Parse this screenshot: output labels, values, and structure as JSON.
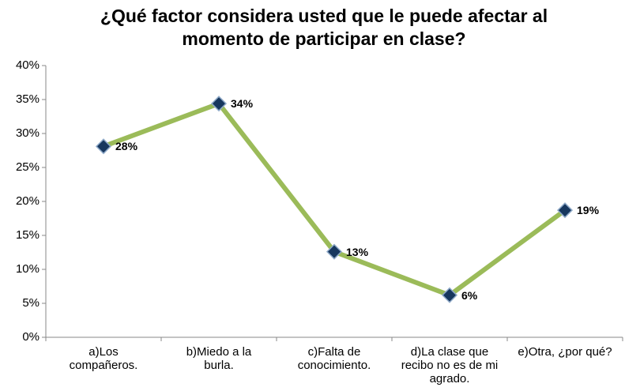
{
  "chart_data": {
    "type": "line",
    "title": "¿Qué factor considera usted que le puede afectar al momento de participar en clase?",
    "categories": [
      "a)Los compañeros.",
      "b)Miedo a la burla.",
      "c)Falta de conocimiento.",
      "d)La clase que recibo no es de mi agrado.",
      "e)Otra, ¿por qué?"
    ],
    "series": [
      {
        "name": null,
        "color": "#9bbb59",
        "marker_color": "#17375e",
        "values": [
          28.1,
          34.4,
          12.6,
          6.2,
          18.7
        ],
        "value_labels": [
          "28%",
          "34%",
          "13%",
          "6%",
          "19%"
        ]
      }
    ],
    "ylim": [
      0,
      40
    ],
    "yticks": [
      {
        "value": 0,
        "label": "0%"
      },
      {
        "value": 5,
        "label": "5%"
      },
      {
        "value": 10,
        "label": "10%"
      },
      {
        "value": 15,
        "label": "15%"
      },
      {
        "value": 20,
        "label": "20%"
      },
      {
        "value": 25,
        "label": "25%"
      },
      {
        "value": 30,
        "label": "30%"
      },
      {
        "value": 35,
        "label": "35%"
      },
      {
        "value": 40,
        "label": "40%"
      }
    ],
    "grid": false
  }
}
